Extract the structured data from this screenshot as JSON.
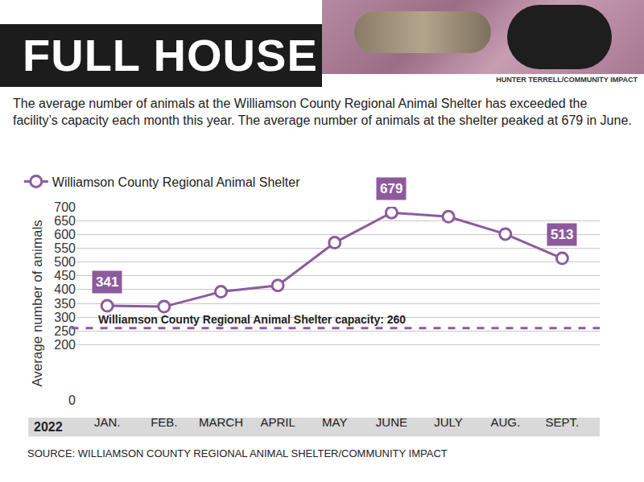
{
  "chart_data": {
    "type": "line",
    "title": "FULL HOUSE",
    "credit": "HUNTER TERRELL/COMMUNITY IMPACT",
    "subtitle": "The average number of animals at the Williamson County Regional Animal Shelter has exceeded the facility’s capacity each month this year. The average number of animals at the shelter peaked at 679 in June.",
    "source": "SOURCE: WILLIAMSON COUNTY REGIONAL ANIMAL SHELTER/COMMUNITY IMPACT",
    "xlabel": "2022",
    "ylabel": "Average number of animals",
    "categories": [
      "JAN.",
      "FEB.",
      "MARCH",
      "APRIL",
      "MAY",
      "JUNE",
      "JULY",
      "AUG.",
      "SEPT."
    ],
    "series": [
      {
        "name": "Williamson County Regional Animal Shelter",
        "color": "#8e5a9e",
        "marker": "circle",
        "values": [
          341,
          338,
          392,
          415,
          570,
          679,
          664,
          601,
          513
        ],
        "value_labels": [
          "341",
          null,
          null,
          null,
          null,
          "679",
          null,
          null,
          "513"
        ]
      }
    ],
    "ylim": [
      0,
      700
    ],
    "yticks": [
      0,
      200,
      250,
      300,
      350,
      400,
      450,
      500,
      550,
      600,
      650,
      700
    ],
    "grid": true,
    "legend": "top left",
    "reference_line": {
      "value": 260,
      "label": "Williamson County Regional Animal Shelter capacity: 260",
      "line_style": "dashed"
    }
  }
}
